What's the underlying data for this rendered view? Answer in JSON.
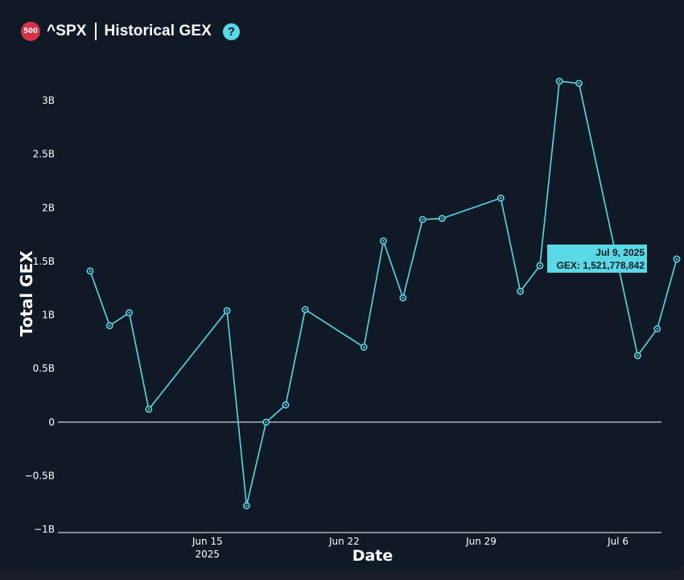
{
  "header": {
    "badge": "500",
    "symbol": "^SPX",
    "title": "Historical GEX",
    "help_icon": "?"
  },
  "colors": {
    "background": "#0f1a26",
    "line": "#5ad8e6",
    "badge": "#d5334a",
    "zero_line": "#ffffff"
  },
  "chart_data": {
    "type": "line",
    "title": "^SPX | Historical GEX",
    "xlabel": "Date",
    "ylabel": "Total GEX",
    "ylim": [
      -1000000000,
      3300000000
    ],
    "yticks": [
      {
        "value": 3000000000,
        "label": "3B"
      },
      {
        "value": 2500000000,
        "label": "2.5B"
      },
      {
        "value": 2000000000,
        "label": "2B"
      },
      {
        "value": 1500000000,
        "label": "1.5B"
      },
      {
        "value": 1000000000,
        "label": "1B"
      },
      {
        "value": 500000000,
        "label": "0.5B"
      },
      {
        "value": 0,
        "label": "0"
      },
      {
        "value": -500000000,
        "label": "−0.5B"
      },
      {
        "value": -1000000000,
        "label": "−1B"
      }
    ],
    "xticks": [
      {
        "date": "2025-06-15",
        "label": "Jun 15",
        "sublabel": "2025"
      },
      {
        "date": "2025-06-22",
        "label": "Jun 22",
        "sublabel": ""
      },
      {
        "date": "2025-06-29",
        "label": "Jun 29",
        "sublabel": ""
      },
      {
        "date": "2025-07-06",
        "label": "Jul 6",
        "sublabel": ""
      }
    ],
    "xlim": [
      "2025-06-09",
      "2025-07-10"
    ],
    "grid": false,
    "series": [
      {
        "points": [
          {
            "x": "2025-06-09",
            "y": 1410000000
          },
          {
            "x": "2025-06-10",
            "y": 900000000
          },
          {
            "x": "2025-06-11",
            "y": 1020000000
          },
          {
            "x": "2025-06-12",
            "y": 120000000
          },
          {
            "x": "2025-06-16",
            "y": 1040000000
          },
          {
            "x": "2025-06-17",
            "y": -780000000
          },
          {
            "x": "2025-06-18",
            "y": 0
          },
          {
            "x": "2025-06-19",
            "y": 160000000
          },
          {
            "x": "2025-06-20",
            "y": 1050000000
          },
          {
            "x": "2025-06-23",
            "y": 700000000
          },
          {
            "x": "2025-06-24",
            "y": 1690000000
          },
          {
            "x": "2025-06-25",
            "y": 1160000000
          },
          {
            "x": "2025-06-26",
            "y": 1890000000
          },
          {
            "x": "2025-06-27",
            "y": 1900000000
          },
          {
            "x": "2025-06-30",
            "y": 2090000000
          },
          {
            "x": "2025-07-01",
            "y": 1220000000
          },
          {
            "x": "2025-07-02",
            "y": 1460000000
          },
          {
            "x": "2025-07-03",
            "y": 3180000000
          },
          {
            "x": "2025-07-04",
            "y": 3160000000
          },
          {
            "x": "2025-07-07",
            "y": 620000000
          },
          {
            "x": "2025-07-08",
            "y": 870000000
          },
          {
            "x": "2025-07-09",
            "y": 1521778842
          }
        ]
      }
    ],
    "tooltip": {
      "date": "Jul 9, 2025",
      "value": "GEX: 1,521,778,842"
    }
  }
}
